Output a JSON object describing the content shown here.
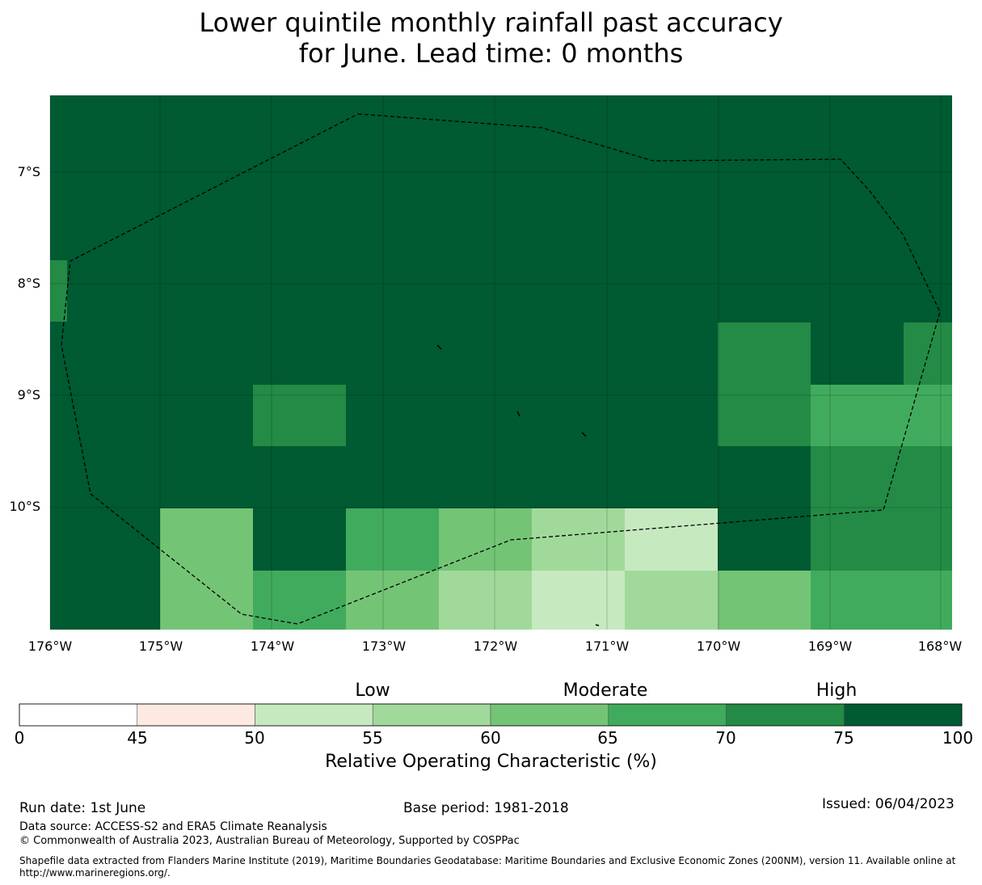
{
  "title": {
    "line1": "Lower quintile monthly rainfall past accuracy",
    "line2": "for June. Lead time: 0 months"
  },
  "map": {
    "lon_ticks": [
      "176°W",
      "175°W",
      "174°W",
      "173°W",
      "172°W",
      "171°W",
      "170°W",
      "169°W",
      "168°W"
    ],
    "lat_ticks": [
      "7°S",
      "8°S",
      "9°S",
      "10°S"
    ],
    "boundary_style": "dashed-black",
    "colors": {
      "c0": "#ffffff",
      "c45": "#fee9e1",
      "c50": "#c7e9c0",
      "c55": "#a1d99b",
      "c60": "#74c476",
      "c65": "#41ab5d",
      "c70": "#238b45",
      "c75": "#005a32"
    }
  },
  "colorbar": {
    "categories": [
      "Low",
      "Moderate",
      "High"
    ],
    "ticks": [
      "0",
      "45",
      "50",
      "55",
      "60",
      "65",
      "70",
      "75",
      "100"
    ],
    "bins": [
      {
        "from": 0,
        "to": 45,
        "color": "#ffffff"
      },
      {
        "from": 45,
        "to": 50,
        "color": "#fee9e1"
      },
      {
        "from": 50,
        "to": 55,
        "color": "#c7e9c0"
      },
      {
        "from": 55,
        "to": 60,
        "color": "#a1d99b"
      },
      {
        "from": 60,
        "to": 65,
        "color": "#74c476"
      },
      {
        "from": 65,
        "to": 70,
        "color": "#41ab5d"
      },
      {
        "from": 70,
        "to": 75,
        "color": "#238b45"
      },
      {
        "from": 75,
        "to": 100,
        "color": "#005a32"
      }
    ],
    "label": "Relative Operating Characteristic (%)"
  },
  "footer": {
    "run_date": "Run date: 1st June",
    "base_period": "Base period: 1981-2018",
    "issued": "Issued: 06/04/2023",
    "data_source": "Data source: ACCESS-S2 and ERA5 Climate Reanalysis",
    "copyright": "© Commonwealth of Australia 2023, Australian Bureau of Meteorology, Supported by COSPPac",
    "shapefile": "Shapefile data extracted from Flanders Marine Institute (2019), Maritime Boundaries Geodatabase: Maritime Boundaries and Exclusive Economic Zones (200NM), version 11. Available online at http://www.marineregions.org/."
  }
}
